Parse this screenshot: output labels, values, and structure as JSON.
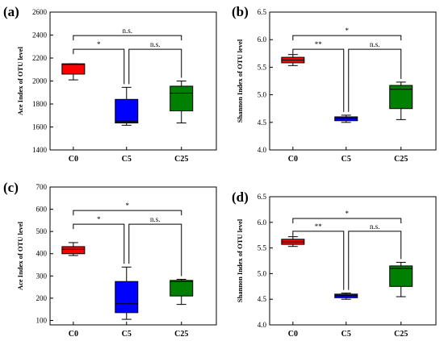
{
  "chart_data": [
    {
      "type": "box",
      "panel_label": "(a)",
      "ylabel": "Ace Index of OTU level",
      "ylim": [
        1400,
        2600
      ],
      "yticks": [
        1400,
        1600,
        1800,
        2000,
        2200,
        2400,
        2600
      ],
      "categories": [
        "C0",
        "C5",
        "C25"
      ],
      "colors": [
        "#ff0000",
        "#0000ff",
        "#008000"
      ],
      "boxes": [
        {
          "min": 2010,
          "q1": 2060,
          "median": 2145,
          "q3": 2150,
          "max": 2150
        },
        {
          "min": 1615,
          "q1": 1635,
          "median": 1650,
          "q3": 1840,
          "max": 1945
        },
        {
          "min": 1635,
          "q1": 1740,
          "median": 1895,
          "q3": 1955,
          "max": 2000
        }
      ],
      "significance": [
        {
          "from": 0,
          "to": 2,
          "label": "n.s."
        },
        {
          "from": 0,
          "to": 1,
          "label": "*"
        },
        {
          "from": 1,
          "to": 2,
          "label": "n.s."
        }
      ]
    },
    {
      "type": "box",
      "panel_label": "(b)",
      "ylabel": "Shannon Index of OTU level",
      "ylim": [
        4.0,
        6.5
      ],
      "yticks": [
        "4.0",
        "4.5",
        "5.0",
        "5.5",
        "6.0",
        "6.5"
      ],
      "categories": [
        "C0",
        "C5",
        "C25"
      ],
      "colors": [
        "#ff0000",
        "#0000ff",
        "#008000"
      ],
      "boxes": [
        {
          "min": 5.53,
          "q1": 5.58,
          "median": 5.63,
          "q3": 5.68,
          "max": 5.73
        },
        {
          "min": 4.5,
          "q1": 4.53,
          "median": 4.57,
          "q3": 4.6,
          "max": 4.63
        },
        {
          "min": 4.55,
          "q1": 4.75,
          "median": 5.1,
          "q3": 5.17,
          "max": 5.23
        }
      ],
      "significance": [
        {
          "from": 0,
          "to": 2,
          "label": "*"
        },
        {
          "from": 0,
          "to": 1,
          "label": "**"
        },
        {
          "from": 1,
          "to": 2,
          "label": "n.s."
        }
      ]
    },
    {
      "type": "box",
      "panel_label": "(c)",
      "ylabel": "Ace Index of OTU level",
      "ylim": [
        80,
        700
      ],
      "yticks": [
        100,
        200,
        300,
        400,
        500,
        600,
        700
      ],
      "categories": [
        "C0",
        "C5",
        "C25"
      ],
      "colors": [
        "#ff0000",
        "#0000ff",
        "#008000"
      ],
      "boxes": [
        {
          "min": 392,
          "q1": 400,
          "median": 420,
          "q3": 432,
          "max": 450
        },
        {
          "min": 105,
          "q1": 135,
          "median": 175,
          "q3": 275,
          "max": 340
        },
        {
          "min": 172,
          "q1": 210,
          "median": 275,
          "q3": 280,
          "max": 285
        }
      ],
      "significance": [
        {
          "from": 0,
          "to": 2,
          "label": "*"
        },
        {
          "from": 0,
          "to": 1,
          "label": "*"
        },
        {
          "from": 1,
          "to": 2,
          "label": "n.s."
        }
      ]
    },
    {
      "type": "box",
      "panel_label": "(d)",
      "ylabel": "Shannon Index of OTU level",
      "ylim": [
        4.0,
        6.5
      ],
      "yticks": [
        "4.0",
        "4.5",
        "5.0",
        "5.5",
        "6.0",
        "6.5"
      ],
      "categories": [
        "C0",
        "C5",
        "C25"
      ],
      "colors": [
        "#ff0000",
        "#0000ff",
        "#008000"
      ],
      "boxes": [
        {
          "min": 5.53,
          "q1": 5.57,
          "median": 5.62,
          "q3": 5.67,
          "max": 5.72
        },
        {
          "min": 4.5,
          "q1": 4.53,
          "median": 4.57,
          "q3": 4.6,
          "max": 4.62
        },
        {
          "min": 4.55,
          "q1": 4.75,
          "median": 5.1,
          "q3": 5.15,
          "max": 5.22
        }
      ],
      "significance": [
        {
          "from": 0,
          "to": 2,
          "label": "*"
        },
        {
          "from": 0,
          "to": 1,
          "label": "**"
        },
        {
          "from": 1,
          "to": 2,
          "label": "n.s."
        }
      ]
    }
  ]
}
